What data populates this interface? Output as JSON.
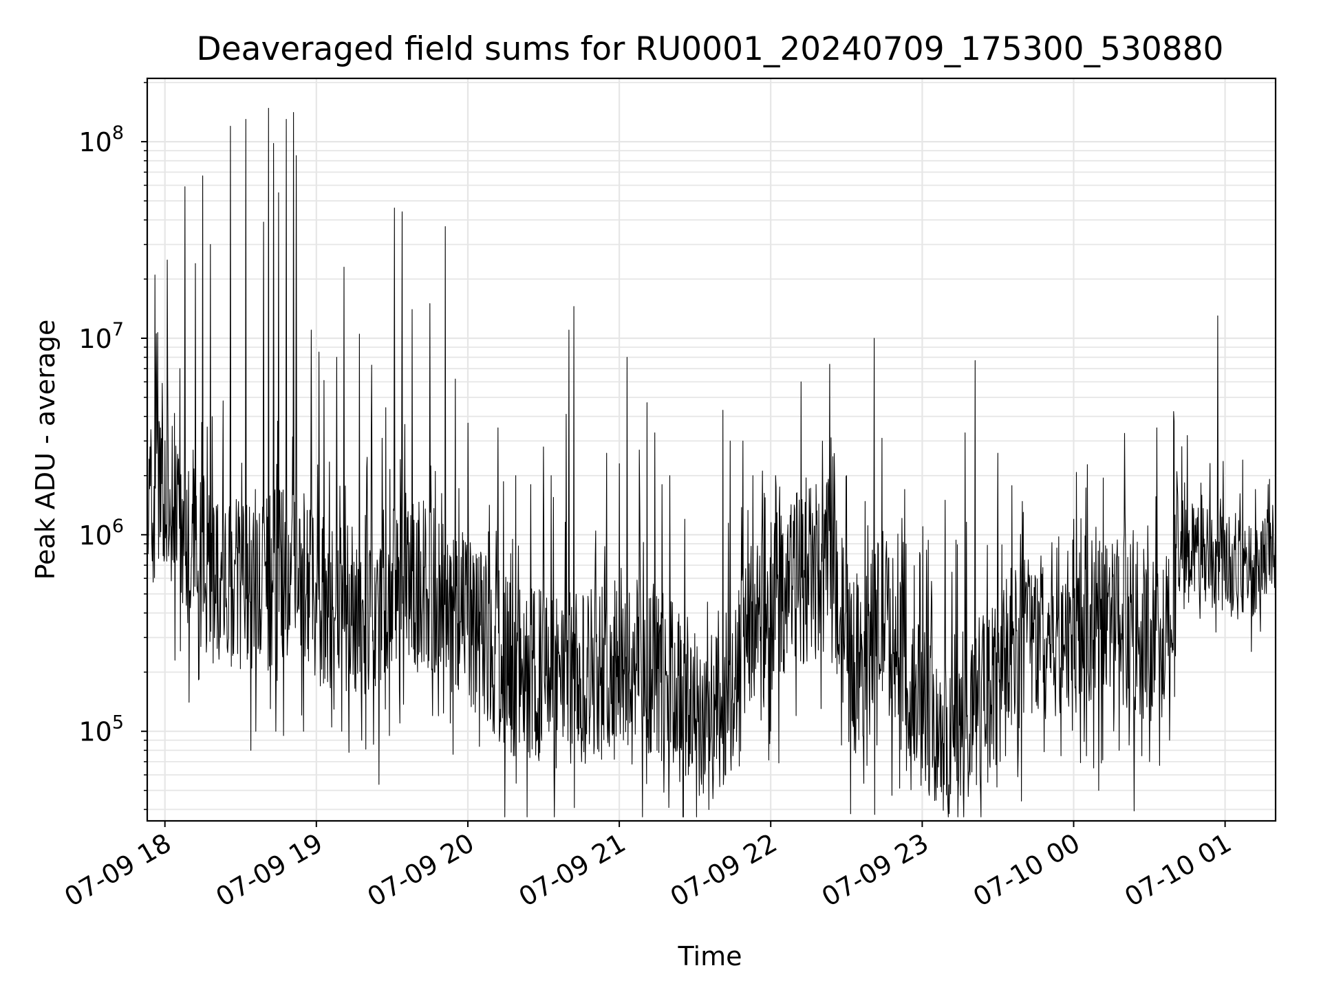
{
  "chart_data": {
    "type": "line",
    "title": "Deaveraged field sums for RU0001_20240709_175300_530880",
    "xlabel": "Time",
    "ylabel": "Peak ADU - average",
    "yscale": "log",
    "xlim": [
      "07-09 17:53",
      "07-10 01:20"
    ],
    "ylim": [
      35000,
      210000000
    ],
    "grid": true,
    "line_color": "#000000",
    "grid_color": "#e6e6e6",
    "x_ticks": [
      {
        "time": "07-09 18:00",
        "label": "07-09 18"
      },
      {
        "time": "07-09 19:00",
        "label": "07-09 19"
      },
      {
        "time": "07-09 20:00",
        "label": "07-09 20"
      },
      {
        "time": "07-09 21:00",
        "label": "07-09 21"
      },
      {
        "time": "07-09 22:00",
        "label": "07-09 22"
      },
      {
        "time": "07-09 23:00",
        "label": "07-09 23"
      },
      {
        "time": "07-10 00:00",
        "label": "07-10 00"
      },
      {
        "time": "07-10 01:00",
        "label": "07-10 01"
      }
    ],
    "y_ticks": [
      {
        "value": 100000,
        "base": "10",
        "exp": "5"
      },
      {
        "value": 1000000,
        "base": "10",
        "exp": "6"
      },
      {
        "value": 10000000,
        "base": "10",
        "exp": "7"
      },
      {
        "value": 100000000,
        "base": "10",
        "exp": "8"
      }
    ],
    "series": [
      {
        "baseline": [
          [
            "07-09 17:53",
            1300000
          ],
          [
            "07-09 18:05",
            1500000
          ],
          [
            "07-09 18:10",
            900000
          ],
          [
            "07-09 18:20",
            600000
          ],
          [
            "07-09 18:35",
            500000
          ],
          [
            "07-09 18:50",
            700000
          ],
          [
            "07-09 19:05",
            400000
          ],
          [
            "07-09 19:20",
            450000
          ],
          [
            "07-09 19:35",
            600000
          ],
          [
            "07-09 19:50",
            500000
          ],
          [
            "07-09 20:05",
            300000
          ],
          [
            "07-09 20:20",
            200000
          ],
          [
            "07-09 20:40",
            180000
          ],
          [
            "07-09 21:00",
            250000
          ],
          [
            "07-09 21:15",
            200000
          ],
          [
            "07-09 21:30",
            130000
          ],
          [
            "07-09 21:42",
            100000
          ],
          [
            "07-09 21:50",
            350000
          ],
          [
            "07-09 22:00",
            450000
          ],
          [
            "07-09 22:10",
            600000
          ],
          [
            "07-09 22:25",
            700000
          ],
          [
            "07-09 22:32",
            200000
          ],
          [
            "07-09 22:45",
            400000
          ],
          [
            "07-09 22:55",
            150000
          ],
          [
            "07-09 23:10",
            100000
          ],
          [
            "07-09 23:25",
            150000
          ],
          [
            "07-09 23:40",
            300000
          ],
          [
            "07-10 00:00",
            350000
          ],
          [
            "07-10 00:20",
            380000
          ],
          [
            "07-10 00:35",
            250000
          ],
          [
            "07-10 00:42",
            900000
          ],
          [
            "07-10 00:55",
            750000
          ],
          [
            "07-10 01:10",
            650000
          ],
          [
            "07-10 01:20",
            900000
          ]
        ],
        "spikes": [
          [
            "07-09 17:54",
            2800000
          ],
          [
            "07-09 17:56",
            21000000
          ],
          [
            "07-09 17:59",
            5900000
          ],
          [
            "07-09 18:01",
            25000000
          ],
          [
            "07-09 18:06",
            7000000
          ],
          [
            "07-09 18:08",
            59000000
          ],
          [
            "07-09 18:12",
            24000000
          ],
          [
            "07-09 18:15",
            67000000
          ],
          [
            "07-09 18:18",
            30000000
          ],
          [
            "07-09 18:23",
            4800000
          ],
          [
            "07-09 18:26",
            120000000
          ],
          [
            "07-09 18:32",
            130000000
          ],
          [
            "07-09 18:39",
            39000000
          ],
          [
            "07-09 18:41",
            148000000
          ],
          [
            "07-09 18:43",
            98000000
          ],
          [
            "07-09 18:45",
            55000000
          ],
          [
            "07-09 18:48",
            130000000
          ],
          [
            "07-09 18:51",
            141000000
          ],
          [
            "07-09 18:52",
            85000000
          ],
          [
            "07-09 18:58",
            11000000
          ],
          [
            "07-09 19:01",
            8500000
          ],
          [
            "07-09 19:03",
            6100000
          ],
          [
            "07-09 19:08",
            8000000
          ],
          [
            "07-09 19:11",
            23000000
          ],
          [
            "07-09 19:17",
            10500000
          ],
          [
            "07-09 19:22",
            7300000
          ],
          [
            "07-09 19:26",
            3100000
          ],
          [
            "07-09 19:31",
            46000000
          ],
          [
            "07-09 19:34",
            44000000
          ],
          [
            "07-09 19:38",
            14000000
          ],
          [
            "07-09 19:45",
            15000000
          ],
          [
            "07-09 19:51",
            37000000
          ],
          [
            "07-09 19:55",
            6200000
          ],
          [
            "07-09 20:00",
            3700000
          ],
          [
            "07-09 20:12",
            3500000
          ],
          [
            "07-09 20:19",
            2000000
          ],
          [
            "07-09 20:25",
            1800000
          ],
          [
            "07-09 20:30",
            2800000
          ],
          [
            "07-09 20:33",
            2000000
          ],
          [
            "07-09 20:39",
            4100000
          ],
          [
            "07-09 20:40",
            11000000
          ],
          [
            "07-09 20:42",
            14500000
          ],
          [
            "07-09 20:55",
            2600000
          ],
          [
            "07-09 21:00",
            2300000
          ],
          [
            "07-09 21:03",
            8000000
          ],
          [
            "07-09 21:08",
            2700000
          ],
          [
            "07-09 21:11",
            4700000
          ],
          [
            "07-09 21:14",
            3300000
          ],
          [
            "07-09 21:17",
            1800000
          ],
          [
            "07-09 21:20",
            2000000
          ],
          [
            "07-09 21:26",
            1200000
          ],
          [
            "07-09 21:41",
            4300000
          ],
          [
            "07-09 21:44",
            3000000
          ],
          [
            "07-09 21:49",
            3000000
          ],
          [
            "07-09 21:53",
            2000000
          ],
          [
            "07-09 22:02",
            2000000
          ],
          [
            "07-09 22:12",
            6000000
          ],
          [
            "07-09 22:30",
            2000000
          ],
          [
            "07-09 22:41",
            10000000
          ],
          [
            "07-09 22:44",
            3100000
          ],
          [
            "07-09 22:53",
            1700000
          ],
          [
            "07-09 23:09",
            1500000
          ],
          [
            "07-09 23:17",
            3300000
          ],
          [
            "07-09 23:21",
            7700000
          ],
          [
            "07-09 23:30",
            2600000
          ],
          [
            "07-09 23:40",
            1300000
          ],
          [
            "07-10 00:00",
            1200000
          ],
          [
            "07-10 00:33",
            3500000
          ],
          [
            "07-10 00:40",
            3500000
          ],
          [
            "07-10 00:45",
            3200000
          ],
          [
            "07-10 00:57",
            13000000
          ],
          [
            "07-10 01:07",
            2400000
          ],
          [
            "07-10 01:12",
            1700000
          ],
          [
            "07-10 01:17",
            1800000
          ]
        ],
        "dips": [
          [
            "07-09 18:04",
            230000
          ],
          [
            "07-09 18:22",
            300000
          ],
          [
            "07-09 18:34",
            80000
          ],
          [
            "07-09 18:36",
            100000
          ],
          [
            "07-09 18:44",
            100000
          ],
          [
            "07-09 18:47",
            95000
          ],
          [
            "07-09 18:55",
            100000
          ],
          [
            "07-09 19:06",
            105000
          ],
          [
            "07-09 19:10",
            100000
          ],
          [
            "07-09 19:18",
            90000
          ],
          [
            "07-09 19:29",
            95000
          ],
          [
            "07-09 19:33",
            110000
          ],
          [
            "07-09 19:46",
            120000
          ],
          [
            "07-09 19:53",
            110000
          ],
          [
            "07-09 20:03",
            125000
          ],
          [
            "07-09 20:10",
            100000
          ],
          [
            "07-09 20:18",
            75000
          ],
          [
            "07-09 20:28",
            75000
          ],
          [
            "07-09 20:35",
            65000
          ],
          [
            "07-09 20:45",
            70000
          ],
          [
            "07-09 20:53",
            72000
          ],
          [
            "07-09 20:58",
            72000
          ],
          [
            "07-09 21:05",
            68000
          ],
          [
            "07-09 21:15",
            80000
          ],
          [
            "07-09 21:23",
            85000
          ],
          [
            "07-09 21:30",
            80000
          ],
          [
            "07-09 21:37",
            65000
          ],
          [
            "07-09 21:42",
            60000
          ],
          [
            "07-09 21:45",
            75000
          ],
          [
            "07-09 22:00",
            100000
          ],
          [
            "07-09 22:10",
            120000
          ],
          [
            "07-09 22:28",
            85000
          ],
          [
            "07-09 22:33",
            80000
          ],
          [
            "07-09 22:42",
            85000
          ],
          [
            "07-09 22:55",
            75000
          ],
          [
            "07-09 23:00",
            65000
          ],
          [
            "07-09 23:13",
            70000
          ],
          [
            "07-09 23:18",
            75000
          ],
          [
            "07-09 23:23",
            60000
          ],
          [
            "07-09 23:26",
            55000
          ],
          [
            "07-09 23:33",
            75000
          ],
          [
            "07-09 23:38",
            80000
          ],
          [
            "07-09 23:55",
            75000
          ],
          [
            "07-10 00:05",
            75000
          ],
          [
            "07-10 00:08",
            65000
          ],
          [
            "07-10 00:10",
            50000
          ],
          [
            "07-10 00:18",
            80000
          ],
          [
            "07-10 00:22",
            85000
          ],
          [
            "07-10 00:27",
            75000
          ],
          [
            "07-10 00:30",
            70000
          ],
          [
            "07-10 00:34",
            67000
          ],
          [
            "07-10 00:38",
            90000
          ],
          [
            "07-10 00:40",
            150000
          ],
          [
            "07-10 01:02",
            450000
          ]
        ]
      }
    ]
  }
}
